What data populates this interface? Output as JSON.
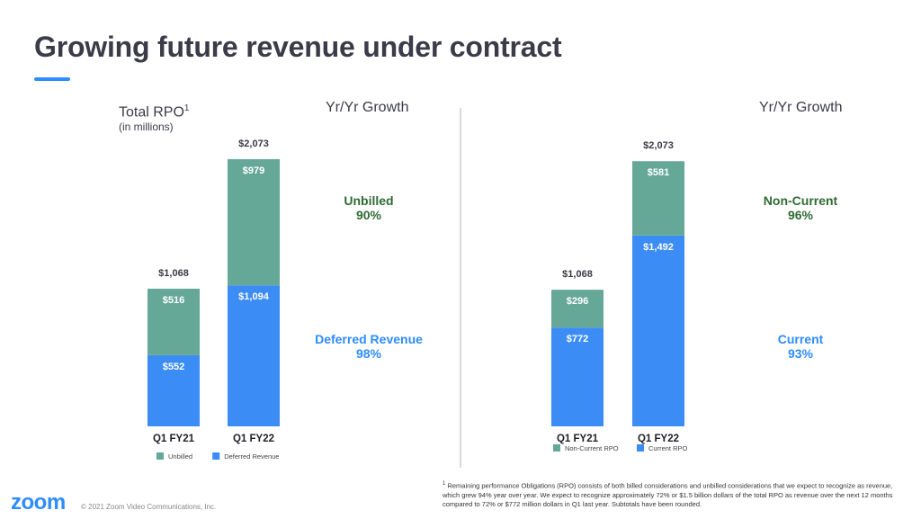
{
  "title": "Growing future revenue under contract",
  "rpo_label": "Total RPO",
  "rpo_sup": "1",
  "rpo_sub": "(in millions)",
  "growth_heading": "Yr/Yr Growth",
  "left_growth": [
    {
      "label": "Unbilled",
      "value": "90%"
    },
    {
      "label": "Deferred Revenue",
      "value": "98%"
    }
  ],
  "right_growth": [
    {
      "label": "Non-Current",
      "value": "96%"
    },
    {
      "label": "Current",
      "value": "93%"
    }
  ],
  "footnote": "Remaining performance Obligations (RPO) consists of both billed considerations and unbilled considerations that we expect to recognize as revenue, which grew 94% year over year. We expect to recognize approximately 72% or $1.5 billion dollars of the total RPO as revenue over the next 12 months compared to 72% or $772 million dollars in Q1 last year. Subtotals have been rounded.",
  "footnote_sup": "1",
  "logo": "zoom",
  "copyright": "© 2021 Zoom Video Communications, Inc.",
  "colors": {
    "green": "#66a898",
    "blue": "#3c8cf5",
    "green_text": "#2e6b33",
    "blue_text": "#2d8cff"
  },
  "chart_data": [
    {
      "type": "bar",
      "stacked": true,
      "categories": [
        "Q1 FY21",
        "Q1 FY22"
      ],
      "series": [
        {
          "name": "Deferred Revenue",
          "values": [
            552,
            1094
          ],
          "labels": [
            "$552",
            "$1,094"
          ],
          "color": "#3c8cf5"
        },
        {
          "name": "Unbilled",
          "values": [
            516,
            979
          ],
          "labels": [
            "$516",
            "$979"
          ],
          "color": "#66a898"
        }
      ],
      "totals": [
        1068,
        2073
      ],
      "total_labels": [
        "$1,068",
        "$2,073"
      ],
      "legend": [
        {
          "name": "Unbilled",
          "color": "#66a898"
        },
        {
          "name": "Deferred Revenue",
          "color": "#3c8cf5"
        }
      ],
      "legend_position": "bottom",
      "grid": false
    },
    {
      "type": "bar",
      "stacked": true,
      "categories": [
        "Q1 FY21",
        "Q1 FY22"
      ],
      "series": [
        {
          "name": "Current RPO",
          "values": [
            772,
            1492
          ],
          "labels": [
            "$772",
            "$1,492"
          ],
          "color": "#3c8cf5"
        },
        {
          "name": "Non-Current RPO",
          "values": [
            296,
            581
          ],
          "labels": [
            "$296",
            "$581"
          ],
          "color": "#66a898"
        }
      ],
      "totals": [
        1068,
        2073
      ],
      "total_labels": [
        "$1,068",
        "$2,073"
      ],
      "legend": [
        {
          "name": "Non-Current RPO",
          "color": "#66a898"
        },
        {
          "name": "Current RPO",
          "color": "#3c8cf5"
        }
      ],
      "legend_position": "bottom",
      "grid": false
    }
  ]
}
